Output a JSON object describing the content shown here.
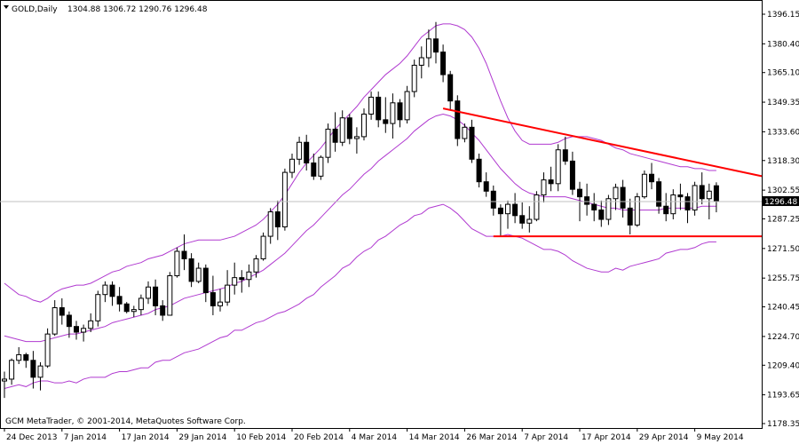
{
  "header": {
    "symbol": "GOLD,Daily",
    "ohlc": "1304.88 1306.72 1290.76 1296.48"
  },
  "footer": {
    "copyright": "GCM MetaTrader, © 2001-2014, MetaQuotes Software Corp."
  },
  "price_tag": {
    "value": "1296.48"
  },
  "colors": {
    "background": "#ffffff",
    "grid": "#c0c0c0",
    "candle": "#000000",
    "bollinger": "#b03ad0",
    "trendline": "#ff0000"
  },
  "chart_data": {
    "type": "candlestick",
    "title": "GOLD,Daily",
    "y_tick_labels": [
      "1396.15",
      "1380.40",
      "1365.10",
      "1349.35",
      "1333.60",
      "1318.30",
      "1302.55",
      "1287.25",
      "1271.50",
      "1255.75",
      "1240.45",
      "1224.70",
      "1209.40",
      "1193.65",
      "1178.35"
    ],
    "y_ticks": [
      1396.15,
      1380.4,
      1365.1,
      1349.35,
      1333.6,
      1318.3,
      1302.55,
      1287.25,
      1271.5,
      1255.75,
      1240.45,
      1224.7,
      1209.4,
      1193.65,
      1178.35
    ],
    "ylim": [
      1178.35,
      1396.15
    ],
    "x_tick_labels": [
      "24 Dec 2013",
      "7 Jan 2014",
      "17 Jan 2014",
      "29 Jan 2014",
      "10 Feb 2014",
      "20 Feb 2014",
      "4 Mar 2014",
      "14 Mar 2014",
      "26 Mar 2014",
      "7 Apr 2014",
      "17 Apr 2014",
      "29 Apr 2014",
      "9 May 2014"
    ],
    "x_tick_index": [
      0,
      8,
      16,
      24,
      32,
      40,
      48,
      56,
      64,
      72,
      80,
      88,
      96
    ],
    "last_price": 1296.48,
    "candles": [
      [
        1201,
        1206,
        1192,
        1202
      ],
      [
        1202,
        1213,
        1199,
        1212
      ],
      [
        1212,
        1219,
        1210,
        1215
      ],
      [
        1215,
        1216,
        1208,
        1212
      ],
      [
        1212,
        1217,
        1197,
        1203
      ],
      [
        1203,
        1211,
        1196,
        1209
      ],
      [
        1209,
        1229,
        1208,
        1226
      ],
      [
        1226,
        1244,
        1225,
        1240
      ],
      [
        1240,
        1245,
        1231,
        1236
      ],
      [
        1236,
        1238,
        1224,
        1230
      ],
      [
        1230,
        1233,
        1223,
        1227
      ],
      [
        1227,
        1231,
        1222,
        1229
      ],
      [
        1229,
        1237,
        1227,
        1233
      ],
      [
        1233,
        1249,
        1230,
        1247
      ],
      [
        1247,
        1254,
        1243,
        1252
      ],
      [
        1252,
        1254,
        1241,
        1246
      ],
      [
        1246,
        1251,
        1238,
        1242
      ],
      [
        1242,
        1243,
        1237,
        1238
      ],
      [
        1238,
        1241,
        1235,
        1239
      ],
      [
        1239,
        1247,
        1236,
        1245
      ],
      [
        1245,
        1254,
        1242,
        1251
      ],
      [
        1251,
        1255,
        1236,
        1241
      ],
      [
        1241,
        1244,
        1233,
        1236
      ],
      [
        1236,
        1259,
        1236,
        1257
      ],
      [
        1257,
        1272,
        1256,
        1270
      ],
      [
        1270,
        1279,
        1260,
        1266
      ],
      [
        1266,
        1269,
        1251,
        1254
      ],
      [
        1254,
        1264,
        1253,
        1261
      ],
      [
        1261,
        1263,
        1243,
        1248
      ],
      [
        1248,
        1257,
        1236,
        1241
      ],
      [
        1241,
        1250,
        1238,
        1243
      ],
      [
        1243,
        1260,
        1241,
        1252
      ],
      [
        1252,
        1264,
        1247,
        1256
      ],
      [
        1256,
        1260,
        1248,
        1255
      ],
      [
        1255,
        1263,
        1251,
        1259
      ],
      [
        1259,
        1268,
        1256,
        1266
      ],
      [
        1266,
        1280,
        1265,
        1278
      ],
      [
        1278,
        1293,
        1274,
        1291
      ],
      [
        1291,
        1297,
        1276,
        1283
      ],
      [
        1283,
        1314,
        1281,
        1312
      ],
      [
        1312,
        1322,
        1309,
        1319
      ],
      [
        1319,
        1331,
        1316,
        1328
      ],
      [
        1328,
        1332,
        1313,
        1317
      ],
      [
        1317,
        1322,
        1308,
        1310
      ],
      [
        1310,
        1321,
        1308,
        1320
      ],
      [
        1320,
        1338,
        1317,
        1335
      ],
      [
        1335,
        1344,
        1323,
        1328
      ],
      [
        1328,
        1345,
        1326,
        1341
      ],
      [
        1341,
        1343,
        1327,
        1330
      ],
      [
        1330,
        1336,
        1322,
        1331
      ],
      [
        1331,
        1346,
        1329,
        1343
      ],
      [
        1343,
        1355,
        1340,
        1352
      ],
      [
        1352,
        1355,
        1336,
        1340
      ],
      [
        1340,
        1352,
        1333,
        1338
      ],
      [
        1338,
        1354,
        1330,
        1349
      ],
      [
        1349,
        1351,
        1336,
        1340
      ],
      [
        1340,
        1358,
        1338,
        1355
      ],
      [
        1355,
        1372,
        1352,
        1369
      ],
      [
        1369,
        1379,
        1362,
        1373
      ],
      [
        1373,
        1388,
        1368,
        1383
      ],
      [
        1383,
        1392,
        1370,
        1376
      ],
      [
        1376,
        1380,
        1360,
        1364
      ],
      [
        1364,
        1366,
        1345,
        1350
      ],
      [
        1350,
        1353,
        1326,
        1330
      ],
      [
        1330,
        1338,
        1328,
        1336
      ],
      [
        1336,
        1340,
        1317,
        1319
      ],
      [
        1319,
        1322,
        1304,
        1307
      ],
      [
        1307,
        1312,
        1299,
        1302
      ],
      [
        1302,
        1305,
        1289,
        1293
      ],
      [
        1293,
        1295,
        1278,
        1290
      ],
      [
        1290,
        1297,
        1282,
        1295
      ],
      [
        1295,
        1301,
        1285,
        1289
      ],
      [
        1289,
        1296,
        1282,
        1285
      ],
      [
        1285,
        1294,
        1280,
        1287
      ],
      [
        1287,
        1302,
        1286,
        1300
      ],
      [
        1300,
        1312,
        1296,
        1308
      ],
      [
        1308,
        1315,
        1302,
        1306
      ],
      [
        1306,
        1327,
        1302,
        1324
      ],
      [
        1324,
        1331,
        1316,
        1318
      ],
      [
        1318,
        1323,
        1300,
        1303
      ],
      [
        1303,
        1307,
        1286,
        1299
      ],
      [
        1299,
        1306,
        1289,
        1295
      ],
      [
        1295,
        1301,
        1286,
        1292
      ],
      [
        1292,
        1297,
        1283,
        1287
      ],
      [
        1287,
        1300,
        1284,
        1298
      ],
      [
        1298,
        1306,
        1292,
        1304
      ],
      [
        1304,
        1308,
        1288,
        1293
      ],
      [
        1293,
        1298,
        1279,
        1284
      ],
      [
        1284,
        1301,
        1283,
        1299
      ],
      [
        1299,
        1313,
        1298,
        1311
      ],
      [
        1311,
        1317,
        1303,
        1307
      ],
      [
        1307,
        1309,
        1290,
        1294
      ],
      [
        1294,
        1301,
        1286,
        1290
      ],
      [
        1290,
        1303,
        1287,
        1300
      ],
      [
        1300,
        1306,
        1292,
        1299
      ],
      [
        1299,
        1301,
        1285,
        1292
      ],
      [
        1292,
        1307,
        1289,
        1305
      ],
      [
        1305,
        1312,
        1295,
        1298
      ],
      [
        1298,
        1306,
        1287,
        1302
      ],
      [
        1304.88,
        1306.72,
        1290.76,
        1296.48
      ]
    ],
    "bollinger_upper": [
      1253,
      1250,
      1247,
      1246,
      1244,
      1243,
      1245,
      1248,
      1250,
      1251,
      1252,
      1252,
      1253,
      1255,
      1257,
      1259,
      1260,
      1262,
      1263,
      1264,
      1266,
      1267,
      1268,
      1270,
      1272,
      1274,
      1275,
      1276,
      1276,
      1276,
      1276,
      1277,
      1278,
      1280,
      1282,
      1284,
      1287,
      1291,
      1295,
      1300,
      1306,
      1312,
      1317,
      1321,
      1325,
      1330,
      1335,
      1339,
      1343,
      1347,
      1352,
      1356,
      1360,
      1364,
      1367,
      1370,
      1374,
      1379,
      1384,
      1387,
      1390,
      1391,
      1391,
      1390,
      1388,
      1384,
      1378,
      1370,
      1360,
      1350,
      1341,
      1334,
      1329,
      1327,
      1327,
      1327,
      1327,
      1328,
      1330,
      1331,
      1331,
      1331,
      1330,
      1329,
      1327,
      1325,
      1324,
      1322,
      1321,
      1320,
      1319,
      1318,
      1317,
      1316,
      1315,
      1315,
      1314,
      1314,
      1313,
      1313
    ],
    "bollinger_middle": [
      1225,
      1224,
      1223,
      1222,
      1222,
      1222,
      1223,
      1224,
      1225,
      1226,
      1226,
      1227,
      1228,
      1229,
      1230,
      1232,
      1233,
      1234,
      1235,
      1236,
      1237,
      1239,
      1240,
      1241,
      1243,
      1245,
      1246,
      1247,
      1248,
      1249,
      1250,
      1251,
      1253,
      1254,
      1256,
      1258,
      1260,
      1263,
      1266,
      1269,
      1273,
      1277,
      1281,
      1284,
      1288,
      1292,
      1296,
      1300,
      1303,
      1307,
      1311,
      1314,
      1318,
      1321,
      1324,
      1327,
      1330,
      1334,
      1337,
      1340,
      1342,
      1343,
      1342,
      1340,
      1337,
      1333,
      1329,
      1324,
      1319,
      1314,
      1310,
      1306,
      1303,
      1301,
      1300,
      1299,
      1299,
      1299,
      1299,
      1298,
      1297,
      1296,
      1295,
      1294,
      1293,
      1293,
      1292,
      1292,
      1292,
      1292,
      1292,
      1292,
      1293,
      1293,
      1293,
      1293,
      1293,
      1294,
      1294,
      1294
    ],
    "bollinger_lower": [
      1197,
      1198,
      1199,
      1198,
      1200,
      1201,
      1201,
      1200,
      1200,
      1201,
      1200,
      1202,
      1203,
      1203,
      1203,
      1205,
      1206,
      1206,
      1207,
      1208,
      1208,
      1211,
      1212,
      1212,
      1214,
      1216,
      1217,
      1218,
      1220,
      1222,
      1224,
      1225,
      1228,
      1228,
      1230,
      1232,
      1233,
      1235,
      1237,
      1238,
      1240,
      1242,
      1245,
      1247,
      1251,
      1254,
      1257,
      1261,
      1263,
      1267,
      1270,
      1272,
      1276,
      1278,
      1281,
      1284,
      1286,
      1289,
      1290,
      1293,
      1294,
      1295,
      1293,
      1290,
      1286,
      1282,
      1280,
      1278,
      1278,
      1278,
      1279,
      1278,
      1277,
      1275,
      1273,
      1271,
      1271,
      1270,
      1268,
      1265,
      1263,
      1261,
      1260,
      1259,
      1259,
      1261,
      1260,
      1262,
      1263,
      1264,
      1265,
      1266,
      1269,
      1270,
      1271,
      1271,
      1272,
      1274,
      1275,
      1275
    ],
    "trendlines": [
      {
        "from": {
          "index": 61,
          "value": 1346
        },
        "to": {
          "index": 106,
          "value": 1310
        }
      },
      {
        "from": {
          "index": 68,
          "value": 1278
        },
        "to": {
          "index": 106,
          "value": 1278
        }
      }
    ]
  }
}
